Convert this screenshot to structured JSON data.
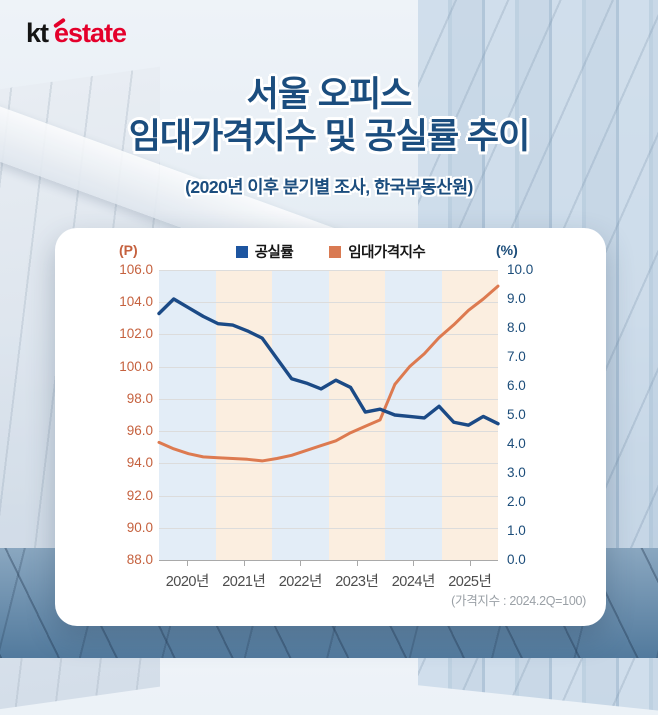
{
  "logo": {
    "kt": "kt",
    "estate": "estate"
  },
  "title": {
    "line1": "서울 오피스",
    "line2": "임대가격지수 및 공실률 추이",
    "subtitle": "(2020년 이후 분기별 조사, 한국부동산원)"
  },
  "chart_data": {
    "type": "line",
    "title": "서울 오피스 임대가격지수 및 공실률 추이",
    "subtitle": "(2020년 이후 분기별 조사, 한국부동산원)",
    "footnote": "(가격지수 : 2024.2Q=100)",
    "x_labels": [
      "2020년",
      "2021년",
      "2022년",
      "2023년",
      "2024년",
      "2025년"
    ],
    "x_frequency": "quarterly",
    "grid": true,
    "legend_position": "top",
    "band_colors": [
      "#e3edf7",
      "#fbeee0"
    ],
    "left_axis": {
      "label": "(P)",
      "min": 88,
      "max": 106,
      "ticks": [
        "106.0",
        "104.0",
        "102.0",
        "100.0",
        "98.0",
        "96.0",
        "94.0",
        "92.0",
        "90.0",
        "88.0"
      ],
      "color": "#c5613e"
    },
    "right_axis": {
      "label": "(%)",
      "min": 0,
      "max": 10,
      "ticks": [
        "10.0",
        "9.0",
        "8.0",
        "7.0",
        "6.0",
        "5.0",
        "4.0",
        "3.0",
        "2.0",
        "1.0",
        "0.0"
      ],
      "color": "#1c4d7a"
    },
    "legend": [
      {
        "name": "공실률",
        "color": "#1d55a0"
      },
      {
        "name": "임대가격지수",
        "color": "#d97a52"
      }
    ],
    "series": [
      {
        "name": "공실률",
        "axis": "right",
        "unit": "%",
        "color": "#1b4a86",
        "x": [
          "2020Q1",
          "2020Q2",
          "2020Q3",
          "2020Q4",
          "2021Q1",
          "2021Q2",
          "2021Q3",
          "2021Q4",
          "2022Q1",
          "2022Q2",
          "2022Q3",
          "2022Q4",
          "2023Q1",
          "2023Q2",
          "2023Q3",
          "2023Q4",
          "2024Q1",
          "2024Q2",
          "2024Q3",
          "2024Q4",
          "2025Q1",
          "2025Q2",
          "2025Q3",
          "2025Q4"
        ],
        "values": [
          8.5,
          9.0,
          8.7,
          8.4,
          8.15,
          8.1,
          7.9,
          7.65,
          6.95,
          6.25,
          6.1,
          5.9,
          6.2,
          5.95,
          5.1,
          5.2,
          5.0,
          4.95,
          4.9,
          5.3,
          4.75,
          4.65,
          4.95,
          4.7
        ]
      },
      {
        "name": "임대가격지수",
        "axis": "left",
        "unit": "P",
        "color": "#dd7a50",
        "x": [
          "2020Q1",
          "2020Q2",
          "2020Q3",
          "2020Q4",
          "2021Q1",
          "2021Q2",
          "2021Q3",
          "2021Q4",
          "2022Q1",
          "2022Q2",
          "2022Q3",
          "2022Q4",
          "2023Q1",
          "2023Q2",
          "2023Q3",
          "2023Q4",
          "2024Q1",
          "2024Q2",
          "2024Q3",
          "2024Q4",
          "2025Q1",
          "2025Q2",
          "2025Q3",
          "2025Q4"
        ],
        "values": [
          95.3,
          94.9,
          94.6,
          94.4,
          94.35,
          94.3,
          94.25,
          94.15,
          94.3,
          94.5,
          94.8,
          95.1,
          95.4,
          95.9,
          96.3,
          96.7,
          98.9,
          100.0,
          100.8,
          101.8,
          102.6,
          103.5,
          104.2,
          105.0
        ]
      }
    ]
  }
}
